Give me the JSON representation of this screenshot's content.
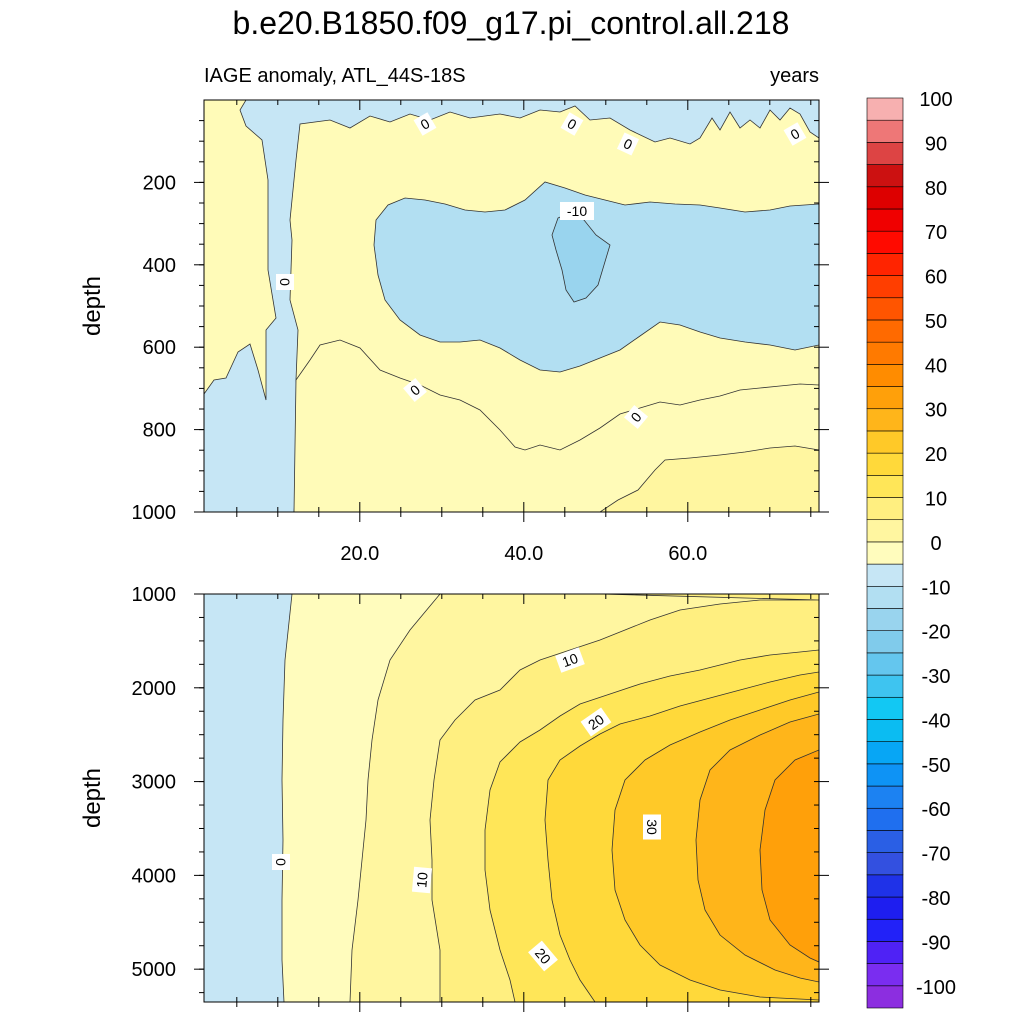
{
  "chart_data": {
    "type": "heatmap",
    "title": "b.e20.B1850.f09_g17.pi_control.all.218",
    "subtitle_left": "IAGE anomaly, ATL_44S-18S",
    "subtitle_right": "years",
    "top_panel": {
      "ylabel": "depth",
      "xlim": [
        1,
        76
      ],
      "ylim": [
        1000,
        0
      ],
      "xticks": [
        "20.0",
        "40.0",
        "60.0"
      ],
      "yticks": [
        "200",
        "400",
        "600",
        "800",
        "1000"
      ],
      "contour_labels": [
        "0",
        "0",
        "0",
        "0",
        "-10",
        "0",
        "0",
        "0"
      ]
    },
    "bottom_panel": {
      "ylabel": "depth",
      "xlim": [
        1,
        76
      ],
      "ylim": [
        5350,
        1000
      ],
      "yticks": [
        "1000",
        "2000",
        "3000",
        "4000",
        "5000"
      ],
      "contour_labels": [
        "10",
        "20",
        "30",
        "0",
        "10",
        "20"
      ]
    },
    "colorbar": {
      "levels": [
        -100,
        -95,
        -90,
        -85,
        -80,
        -75,
        -70,
        -65,
        -60,
        -55,
        -50,
        -45,
        -40,
        -35,
        -30,
        -25,
        -20,
        -15,
        -10,
        -5,
        0,
        5,
        10,
        15,
        20,
        25,
        30,
        35,
        40,
        45,
        50,
        55,
        60,
        65,
        70,
        75,
        80,
        85,
        90,
        95,
        100
      ],
      "labels": [
        "100",
        "90",
        "80",
        "70",
        "60",
        "50",
        "40",
        "30",
        "20",
        "10",
        "0",
        "-10",
        "-20",
        "-30",
        "-40",
        "-50",
        "-60",
        "-70",
        "-80",
        "-90",
        "-100"
      ],
      "colors": [
        "#8c2ee0",
        "#7a2df0",
        "#4f22f5",
        "#2222f8",
        "#1e1ef0",
        "#1f32e8",
        "#3350e0",
        "#2a5fe5",
        "#1f6fef",
        "#1c82f2",
        "#0e93f5",
        "#07a6f5",
        "#0bbcf2",
        "#12c8f3",
        "#3ec4f0",
        "#64c6ee",
        "#80cbeb",
        "#99d4ee",
        "#b2dff2",
        "#c6e6f5",
        "#fffcbd",
        "#fff6a0",
        "#ffef80",
        "#ffe658",
        "#ffd93a",
        "#ffc928",
        "#ffb51a",
        "#ffa00a",
        "#ff8c00",
        "#ff7a00",
        "#ff6a00",
        "#ff5500",
        "#ff3e00",
        "#ff2400",
        "#ff0a00",
        "#f00000",
        "#dd0000",
        "#cc1111",
        "#dd4444",
        "#ee7777",
        "#f7b0b0"
      ]
    }
  }
}
